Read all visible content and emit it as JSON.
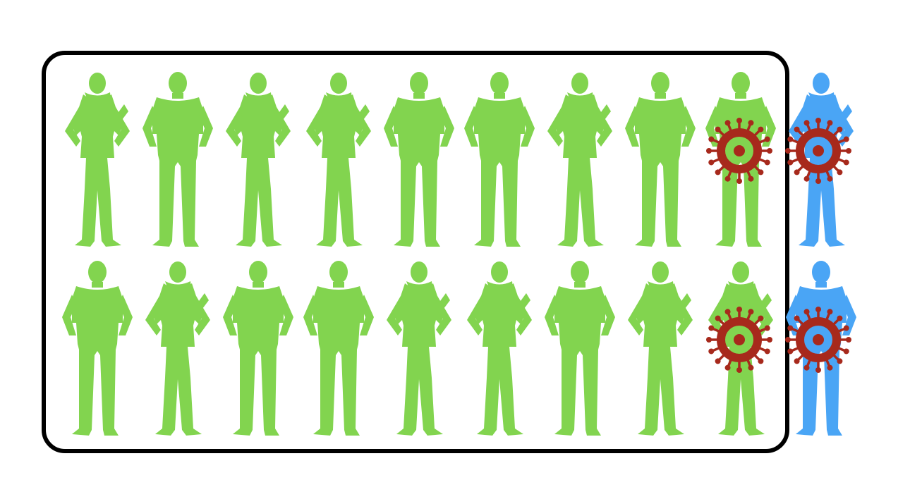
{
  "colors": {
    "background": "#ffffff",
    "green_person": "#82d44f",
    "blue_person": "#4aa5f5",
    "virus": "#a7291c",
    "frame": "#000000"
  },
  "rows": [
    {
      "people": [
        {
          "shape": "woman",
          "color": "green",
          "infected": false
        },
        {
          "shape": "man",
          "color": "green",
          "infected": false
        },
        {
          "shape": "woman",
          "color": "green",
          "infected": false
        },
        {
          "shape": "woman",
          "color": "green",
          "infected": false
        },
        {
          "shape": "man",
          "color": "green",
          "infected": false
        },
        {
          "shape": "man",
          "color": "green",
          "infected": false
        },
        {
          "shape": "woman",
          "color": "green",
          "infected": false
        },
        {
          "shape": "man",
          "color": "green",
          "infected": false
        },
        {
          "shape": "man",
          "color": "green",
          "infected": true
        },
        {
          "shape": "woman",
          "color": "blue",
          "infected": true
        }
      ]
    },
    {
      "people": [
        {
          "shape": "man",
          "color": "green",
          "infected": false
        },
        {
          "shape": "woman",
          "color": "green",
          "infected": false
        },
        {
          "shape": "man",
          "color": "green",
          "infected": false
        },
        {
          "shape": "man",
          "color": "green",
          "infected": false
        },
        {
          "shape": "woman",
          "color": "green",
          "infected": false
        },
        {
          "shape": "woman",
          "color": "green",
          "infected": false
        },
        {
          "shape": "man",
          "color": "green",
          "infected": false
        },
        {
          "shape": "woman",
          "color": "green",
          "infected": false
        },
        {
          "shape": "woman",
          "color": "green",
          "infected": true
        },
        {
          "shape": "man",
          "color": "blue",
          "infected": true
        }
      ]
    }
  ],
  "frame": {
    "encloses_first_n_per_row": 9
  }
}
